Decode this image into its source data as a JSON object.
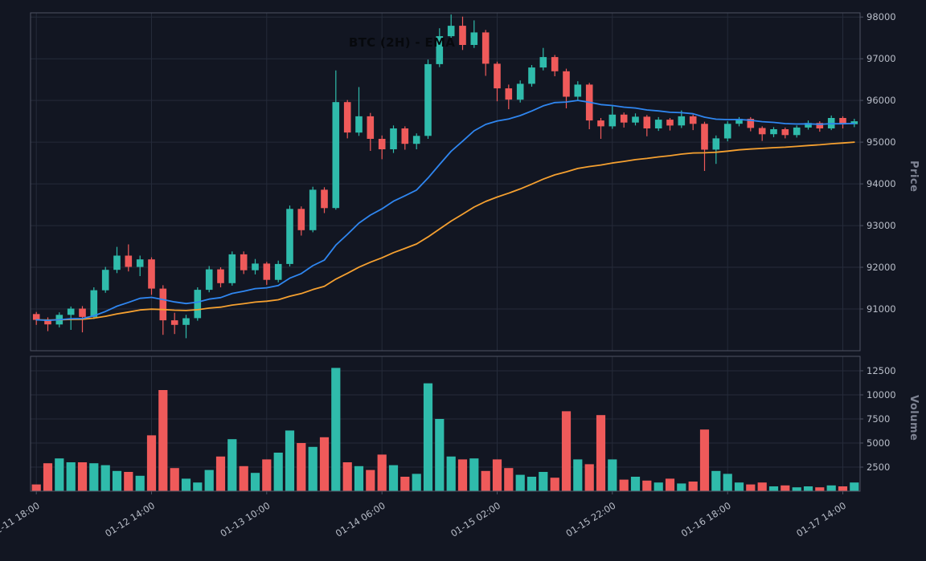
{
  "chart": {
    "title": "BTC (2H) - EMA",
    "price_axis_label": "Price",
    "volume_axis_label": "Volume"
  },
  "chart_data": {
    "type": "candlestick",
    "title": "BTC (2H) - EMA",
    "x_tick_labels": [
      "01-11 18:00",
      "01-12 14:00",
      "01-13 10:00",
      "01-14 06:00",
      "01-15 02:00",
      "01-15 22:00",
      "01-16 18:00",
      "01-17 14:00"
    ],
    "x_tick_indices": [
      0,
      10,
      20,
      30,
      40,
      50,
      60,
      70
    ],
    "price_ticks": [
      91000,
      92000,
      93000,
      94000,
      95000,
      96000,
      97000,
      98000
    ],
    "volume_ticks": [
      2500,
      5000,
      7500,
      10000,
      12500
    ],
    "price_ylim": [
      90000,
      98100
    ],
    "volume_ylim": [
      0,
      14000
    ],
    "grid": true,
    "legend": "none",
    "indicators": [
      {
        "name": "EMA-fast",
        "period": 20,
        "color": "#2f86f0"
      },
      {
        "name": "EMA-slow",
        "period": 50,
        "color": "#f5a030"
      }
    ],
    "colors": {
      "up": "#2fbbab",
      "down": "#ef5a5a",
      "background": "#121622",
      "grid": "#252b3a",
      "border": "#4d5263",
      "tick_text": "#b9bec9",
      "axis_label_text": "#7f8494",
      "title_text": "#07090d"
    },
    "candles_format": [
      "open",
      "high",
      "low",
      "close",
      "volume"
    ],
    "candles": [
      [
        90880,
        90930,
        90620,
        90740,
        700
      ],
      [
        90740,
        90800,
        90470,
        90630,
        2900
      ],
      [
        90630,
        90920,
        90560,
        90860,
        3400
      ],
      [
        90860,
        91060,
        90500,
        91010,
        3000
      ],
      [
        91010,
        91070,
        90440,
        90810,
        3000
      ],
      [
        90810,
        91520,
        90760,
        91450,
        2900
      ],
      [
        91450,
        92010,
        91390,
        91940,
        2700
      ],
      [
        91940,
        92490,
        91860,
        92280,
        2100
      ],
      [
        92280,
        92550,
        91900,
        92010,
        2000
      ],
      [
        92010,
        92280,
        91790,
        92190,
        1600
      ],
      [
        92190,
        92240,
        91340,
        91490,
        5800
      ],
      [
        91490,
        91570,
        90380,
        90730,
        10500
      ],
      [
        90730,
        90910,
        90400,
        90620,
        2400
      ],
      [
        90620,
        90860,
        90300,
        90780,
        1300
      ],
      [
        90780,
        91520,
        90720,
        91460,
        900
      ],
      [
        91460,
        92030,
        91400,
        91950,
        2200
      ],
      [
        91950,
        92000,
        91520,
        91620,
        3600
      ],
      [
        91620,
        92380,
        91560,
        92310,
        5400
      ],
      [
        92310,
        92380,
        91840,
        91930,
        2600
      ],
      [
        91930,
        92200,
        91830,
        92090,
        1900
      ],
      [
        92090,
        92130,
        91580,
        91700,
        3300
      ],
      [
        91700,
        92160,
        91640,
        92080,
        4000
      ],
      [
        92080,
        93480,
        92020,
        93400,
        6300
      ],
      [
        93400,
        93460,
        92760,
        92890,
        5000
      ],
      [
        92890,
        93930,
        92840,
        93860,
        4600
      ],
      [
        93860,
        93920,
        93300,
        93420,
        5600
      ],
      [
        93420,
        96720,
        93380,
        95960,
        12800
      ],
      [
        95960,
        96010,
        95090,
        95230,
        3000
      ],
      [
        95230,
        96320,
        95150,
        95620,
        2600
      ],
      [
        95620,
        95700,
        94790,
        95080,
        2200
      ],
      [
        95080,
        95160,
        94590,
        94830,
        3800
      ],
      [
        94830,
        95400,
        94740,
        95330,
        2700
      ],
      [
        95330,
        95380,
        94820,
        94960,
        1500
      ],
      [
        94960,
        95210,
        94830,
        95150,
        1800
      ],
      [
        95150,
        96980,
        95080,
        96870,
        11200
      ],
      [
        96870,
        97730,
        96800,
        97540,
        7500
      ],
      [
        97540,
        98060,
        97460,
        97790,
        3600
      ],
      [
        97790,
        98010,
        97210,
        97330,
        3300
      ],
      [
        97330,
        97920,
        97260,
        97630,
        3400
      ],
      [
        97630,
        97690,
        96590,
        96880,
        2100
      ],
      [
        96880,
        96930,
        95980,
        96290,
        3300
      ],
      [
        96290,
        96380,
        95790,
        96020,
        2400
      ],
      [
        96020,
        96480,
        95950,
        96400,
        1700
      ],
      [
        96400,
        96850,
        96330,
        96790,
        1500
      ],
      [
        96790,
        97260,
        96720,
        97040,
        2000
      ],
      [
        97040,
        97090,
        96580,
        96700,
        1400
      ],
      [
        96700,
        96760,
        95810,
        96090,
        8300
      ],
      [
        96090,
        96460,
        96010,
        96380,
        3300
      ],
      [
        96380,
        96420,
        95310,
        95520,
        2800
      ],
      [
        95520,
        95580,
        95080,
        95380,
        7900
      ],
      [
        95380,
        95860,
        95320,
        95660,
        3300
      ],
      [
        95660,
        95710,
        95350,
        95470,
        1200
      ],
      [
        95470,
        95690,
        95400,
        95610,
        1500
      ],
      [
        95610,
        95650,
        95140,
        95330,
        1100
      ],
      [
        95330,
        95600,
        95270,
        95540,
        900
      ],
      [
        95540,
        95580,
        95280,
        95400,
        1300
      ],
      [
        95400,
        95760,
        95340,
        95620,
        800
      ],
      [
        95620,
        95660,
        95290,
        95440,
        1000
      ],
      [
        95440,
        95490,
        94310,
        94820,
        6400
      ],
      [
        94820,
        95160,
        94480,
        95090,
        2100
      ],
      [
        95090,
        95500,
        95020,
        95440,
        1800
      ],
      [
        95440,
        95600,
        95380,
        95560,
        900
      ],
      [
        95560,
        95600,
        95260,
        95340,
        700
      ],
      [
        95340,
        95380,
        95030,
        95190,
        900
      ],
      [
        95190,
        95360,
        95120,
        95310,
        500
      ],
      [
        95310,
        95350,
        95090,
        95170,
        600
      ],
      [
        95170,
        95400,
        95110,
        95350,
        400
      ],
      [
        95350,
        95520,
        95300,
        95460,
        500
      ],
      [
        95460,
        95500,
        95250,
        95330,
        400
      ],
      [
        95330,
        95640,
        95290,
        95580,
        600
      ],
      [
        95580,
        95620,
        95330,
        95430,
        500
      ],
      [
        95430,
        95560,
        95360,
        95500,
        900
      ]
    ]
  }
}
